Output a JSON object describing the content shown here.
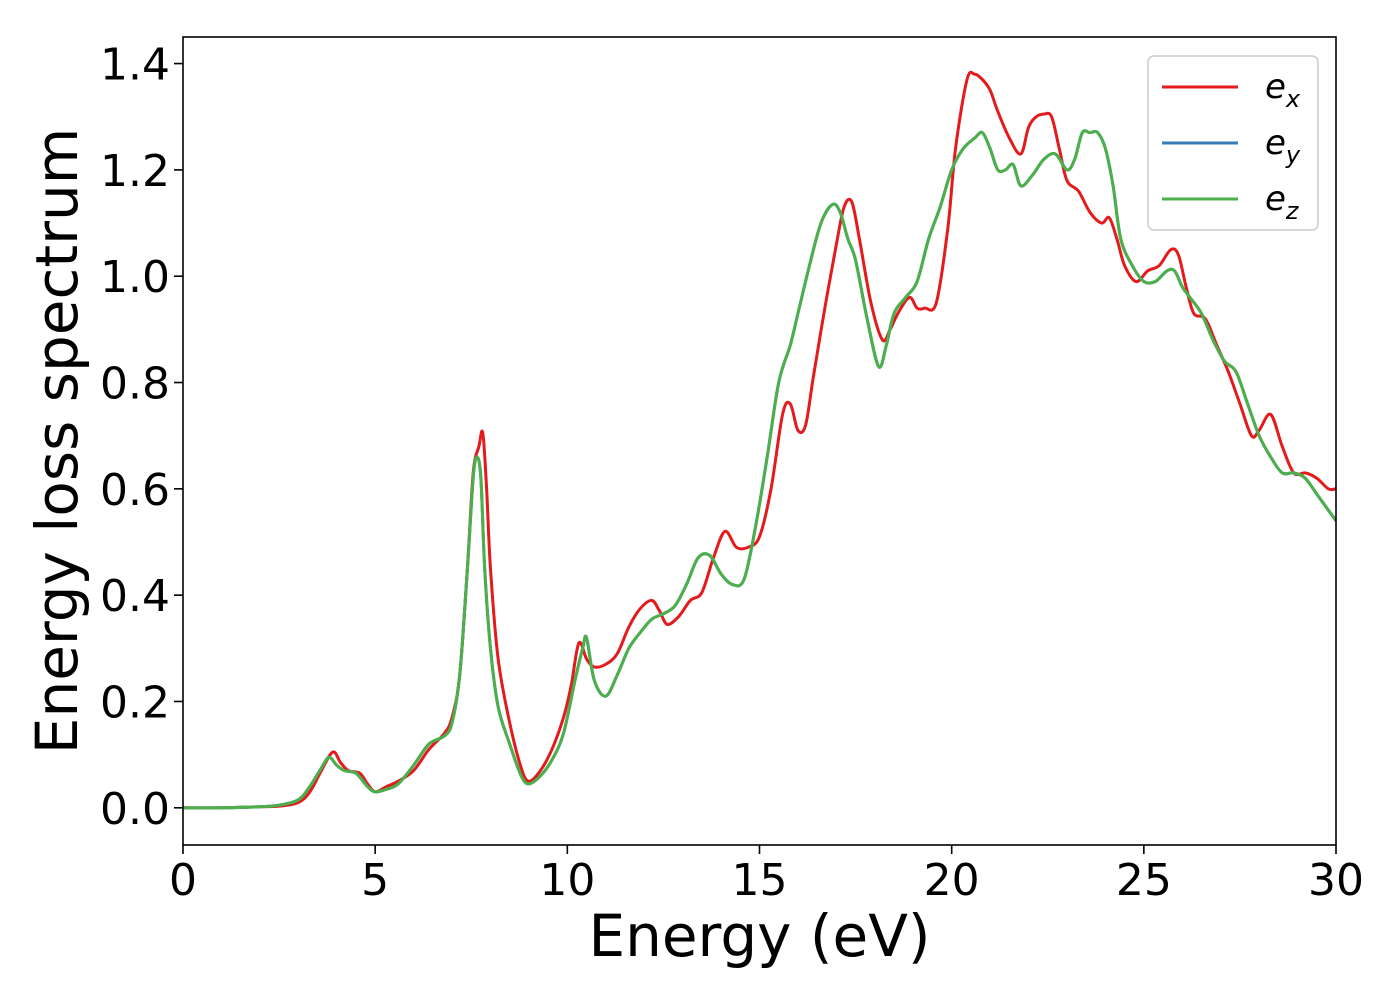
{
  "chart_data": {
    "type": "line",
    "title": "",
    "xlabel": "Energy (eV)",
    "ylabel": "Energy loss spectrum",
    "xlim": [
      0,
      30
    ],
    "ylim": [
      -0.07,
      1.45
    ],
    "xticks": [
      0,
      5,
      10,
      15,
      20,
      25,
      30
    ],
    "yticks": [
      0.0,
      0.2,
      0.4,
      0.6,
      0.8,
      1.0,
      1.2,
      1.4
    ],
    "xtick_labels": [
      "0",
      "5",
      "10",
      "15",
      "20",
      "25",
      "30"
    ],
    "ytick_labels": [
      "0.0",
      "0.2",
      "0.4",
      "0.6",
      "0.8",
      "1.0",
      "1.2",
      "1.4"
    ],
    "grid": false,
    "legend_position": "top-right",
    "series": [
      {
        "name": "e_x",
        "label_main": "e",
        "label_sub": "x",
        "color": "#e41a1c",
        "x": [
          0,
          1,
          2,
          2.5,
          3,
          3.3,
          3.6,
          3.9,
          4.1,
          4.3,
          4.6,
          4.8,
          5.0,
          5.3,
          5.6,
          6.0,
          6.4,
          6.8,
          7.0,
          7.2,
          7.4,
          7.55,
          7.7,
          7.8,
          7.9,
          8.0,
          8.2,
          8.5,
          8.8,
          9.0,
          9.3,
          9.6,
          9.9,
          10.1,
          10.3,
          10.5,
          10.7,
          11.0,
          11.3,
          11.6,
          11.9,
          12.2,
          12.4,
          12.6,
          12.9,
          13.2,
          13.5,
          13.8,
          14.1,
          14.4,
          14.7,
          15.0,
          15.3,
          15.6,
          15.8,
          16.0,
          16.2,
          16.4,
          16.7,
          17.0,
          17.2,
          17.4,
          17.6,
          17.9,
          18.2,
          18.4,
          18.6,
          18.9,
          19.1,
          19.3,
          19.6,
          19.9,
          20.1,
          20.4,
          20.6,
          20.8,
          21.0,
          21.2,
          21.5,
          21.8,
          22.0,
          22.2,
          22.4,
          22.6,
          22.8,
          23.0,
          23.3,
          23.6,
          23.9,
          24.1,
          24.3,
          24.5,
          24.8,
          25.1,
          25.4,
          25.7,
          25.9,
          26.1,
          26.3,
          26.6,
          26.9,
          27.2,
          27.5,
          27.8,
          28.0,
          28.3,
          28.6,
          28.9,
          29.2,
          29.5,
          29.8,
          30.0
        ],
        "y": [
          0.0,
          0.0,
          0.002,
          0.003,
          0.01,
          0.03,
          0.07,
          0.105,
          0.085,
          0.07,
          0.065,
          0.045,
          0.03,
          0.04,
          0.05,
          0.07,
          0.11,
          0.14,
          0.17,
          0.25,
          0.45,
          0.63,
          0.68,
          0.705,
          0.6,
          0.45,
          0.28,
          0.16,
          0.075,
          0.05,
          0.07,
          0.11,
          0.17,
          0.23,
          0.31,
          0.28,
          0.265,
          0.27,
          0.29,
          0.34,
          0.375,
          0.39,
          0.37,
          0.345,
          0.36,
          0.39,
          0.405,
          0.47,
          0.52,
          0.49,
          0.49,
          0.51,
          0.6,
          0.74,
          0.76,
          0.71,
          0.72,
          0.81,
          0.94,
          1.06,
          1.13,
          1.14,
          1.07,
          0.95,
          0.88,
          0.9,
          0.93,
          0.96,
          0.94,
          0.94,
          0.95,
          1.09,
          1.24,
          1.37,
          1.38,
          1.37,
          1.35,
          1.31,
          1.26,
          1.23,
          1.28,
          1.3,
          1.305,
          1.3,
          1.24,
          1.18,
          1.16,
          1.12,
          1.1,
          1.11,
          1.07,
          1.02,
          0.99,
          1.01,
          1.02,
          1.05,
          1.04,
          0.98,
          0.93,
          0.92,
          0.87,
          0.82,
          0.76,
          0.7,
          0.71,
          0.74,
          0.68,
          0.63,
          0.63,
          0.62,
          0.6,
          0.6
        ]
      },
      {
        "name": "e_y",
        "label_main": "e",
        "label_sub": "y",
        "color": "#377eb8",
        "x": [
          0,
          1,
          2,
          2.5,
          3,
          3.3,
          3.6,
          3.8,
          4.0,
          4.2,
          4.5,
          4.8,
          5.0,
          5.3,
          5.6,
          6.0,
          6.4,
          6.8,
          7.0,
          7.2,
          7.4,
          7.55,
          7.65,
          7.75,
          7.85,
          8.0,
          8.2,
          8.5,
          8.8,
          9.0,
          9.3,
          9.6,
          9.9,
          10.2,
          10.4,
          10.5,
          10.7,
          11.0,
          11.3,
          11.6,
          11.9,
          12.2,
          12.5,
          12.8,
          13.1,
          13.4,
          13.7,
          14.0,
          14.3,
          14.6,
          14.9,
          15.2,
          15.5,
          15.8,
          16.0,
          16.3,
          16.6,
          16.9,
          17.1,
          17.3,
          17.5,
          17.8,
          18.1,
          18.3,
          18.5,
          18.8,
          19.1,
          19.4,
          19.7,
          20.0,
          20.3,
          20.6,
          20.8,
          21.0,
          21.2,
          21.4,
          21.6,
          21.8,
          22.1,
          22.4,
          22.7,
          23.0,
          23.2,
          23.4,
          23.6,
          23.8,
          24.0,
          24.2,
          24.4,
          24.7,
          25.0,
          25.3,
          25.6,
          25.8,
          26.0,
          26.2,
          26.5,
          26.8,
          27.1,
          27.4,
          27.7,
          28.0,
          28.3,
          28.6,
          28.9,
          29.2,
          29.5,
          29.8,
          30.0
        ],
        "y": [
          0.0,
          0.0,
          0.002,
          0.005,
          0.015,
          0.04,
          0.075,
          0.095,
          0.08,
          0.07,
          0.065,
          0.04,
          0.03,
          0.035,
          0.045,
          0.08,
          0.12,
          0.135,
          0.16,
          0.25,
          0.45,
          0.62,
          0.66,
          0.62,
          0.45,
          0.3,
          0.19,
          0.12,
          0.06,
          0.045,
          0.06,
          0.09,
          0.14,
          0.24,
          0.3,
          0.32,
          0.24,
          0.21,
          0.25,
          0.3,
          0.33,
          0.355,
          0.365,
          0.38,
          0.42,
          0.47,
          0.475,
          0.44,
          0.42,
          0.43,
          0.53,
          0.66,
          0.8,
          0.87,
          0.93,
          1.02,
          1.1,
          1.135,
          1.12,
          1.07,
          1.03,
          0.92,
          0.83,
          0.87,
          0.93,
          0.96,
          0.99,
          1.07,
          1.13,
          1.2,
          1.24,
          1.26,
          1.27,
          1.24,
          1.2,
          1.2,
          1.21,
          1.17,
          1.19,
          1.22,
          1.23,
          1.2,
          1.22,
          1.27,
          1.27,
          1.27,
          1.24,
          1.17,
          1.07,
          1.02,
          0.99,
          0.99,
          1.01,
          1.01,
          0.98,
          0.96,
          0.93,
          0.88,
          0.84,
          0.82,
          0.76,
          0.7,
          0.66,
          0.63,
          0.63,
          0.62,
          0.59,
          0.56,
          0.54
        ]
      },
      {
        "name": "e_z",
        "label_main": "e",
        "label_sub": "z",
        "color": "#4daf4a",
        "x": [
          0,
          1,
          2,
          2.5,
          3,
          3.3,
          3.6,
          3.8,
          4.0,
          4.2,
          4.5,
          4.8,
          5.0,
          5.3,
          5.6,
          6.0,
          6.4,
          6.8,
          7.0,
          7.2,
          7.4,
          7.55,
          7.65,
          7.75,
          7.85,
          8.0,
          8.2,
          8.5,
          8.8,
          9.0,
          9.3,
          9.6,
          9.9,
          10.2,
          10.4,
          10.5,
          10.7,
          11.0,
          11.3,
          11.6,
          11.9,
          12.2,
          12.5,
          12.8,
          13.1,
          13.4,
          13.7,
          14.0,
          14.3,
          14.6,
          14.9,
          15.2,
          15.5,
          15.8,
          16.0,
          16.3,
          16.6,
          16.9,
          17.1,
          17.3,
          17.5,
          17.8,
          18.1,
          18.3,
          18.5,
          18.8,
          19.1,
          19.4,
          19.7,
          20.0,
          20.3,
          20.6,
          20.8,
          21.0,
          21.2,
          21.4,
          21.6,
          21.8,
          22.1,
          22.4,
          22.7,
          23.0,
          23.2,
          23.4,
          23.6,
          23.8,
          24.0,
          24.2,
          24.4,
          24.7,
          25.0,
          25.3,
          25.6,
          25.8,
          26.0,
          26.2,
          26.5,
          26.8,
          27.1,
          27.4,
          27.7,
          28.0,
          28.3,
          28.6,
          28.9,
          29.2,
          29.5,
          29.8,
          30.0
        ],
        "y": [
          0.0,
          0.0,
          0.002,
          0.005,
          0.015,
          0.04,
          0.075,
          0.095,
          0.08,
          0.07,
          0.065,
          0.04,
          0.03,
          0.035,
          0.045,
          0.08,
          0.12,
          0.135,
          0.16,
          0.25,
          0.45,
          0.62,
          0.66,
          0.62,
          0.45,
          0.3,
          0.19,
          0.12,
          0.06,
          0.045,
          0.06,
          0.09,
          0.14,
          0.24,
          0.3,
          0.32,
          0.24,
          0.21,
          0.25,
          0.3,
          0.33,
          0.355,
          0.365,
          0.38,
          0.42,
          0.47,
          0.475,
          0.44,
          0.42,
          0.43,
          0.53,
          0.66,
          0.8,
          0.87,
          0.93,
          1.02,
          1.1,
          1.135,
          1.12,
          1.07,
          1.03,
          0.92,
          0.83,
          0.87,
          0.93,
          0.96,
          0.99,
          1.07,
          1.13,
          1.2,
          1.24,
          1.26,
          1.27,
          1.24,
          1.2,
          1.2,
          1.21,
          1.17,
          1.19,
          1.22,
          1.23,
          1.2,
          1.22,
          1.27,
          1.27,
          1.27,
          1.24,
          1.17,
          1.07,
          1.02,
          0.99,
          0.99,
          1.01,
          1.01,
          0.98,
          0.96,
          0.93,
          0.88,
          0.84,
          0.82,
          0.76,
          0.7,
          0.66,
          0.63,
          0.63,
          0.62,
          0.59,
          0.56,
          0.54
        ]
      }
    ]
  }
}
